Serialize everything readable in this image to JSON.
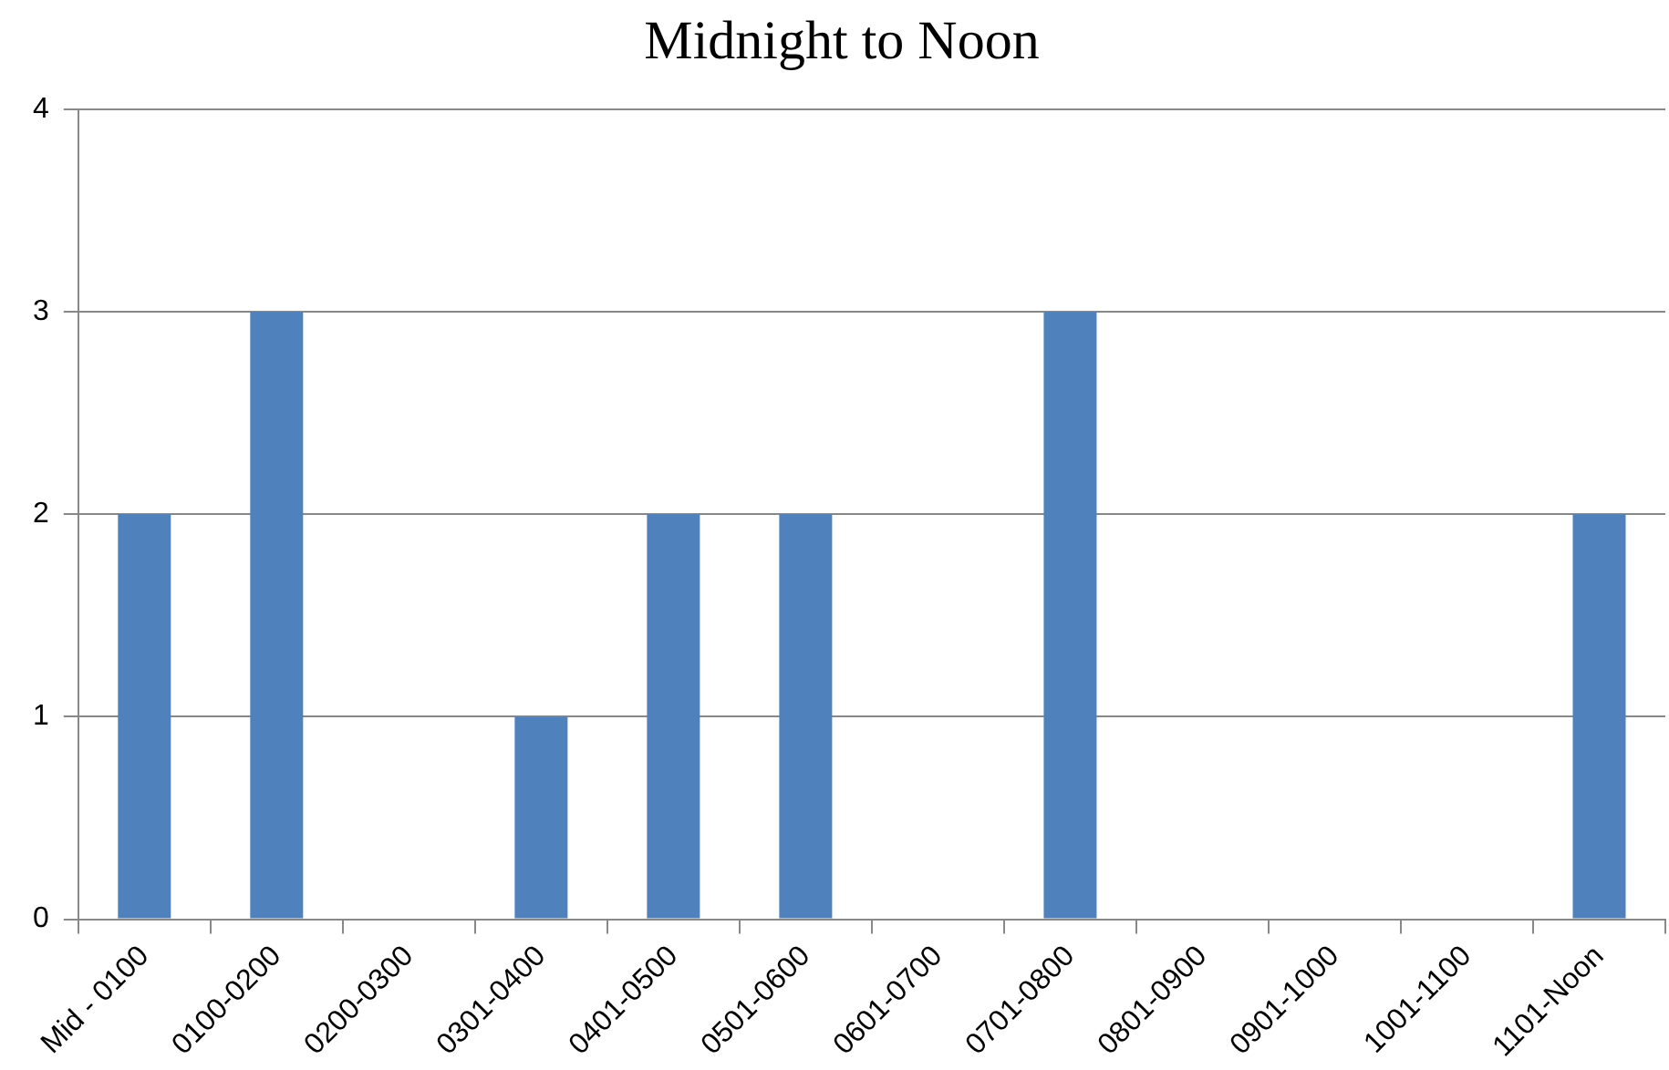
{
  "chart_data": {
    "type": "bar",
    "title": "Midnight to Noon",
    "categories": [
      "Mid - 0100",
      "0100-0200",
      "0200-0300",
      "0301-0400",
      "0401-0500",
      "0501-0600",
      "0601-0700",
      "0701-0800",
      "0801-0900",
      "0901-1000",
      "1001-1100",
      "1101-Noon"
    ],
    "values": [
      2,
      3,
      0,
      1,
      2,
      2,
      0,
      3,
      0,
      0,
      0,
      2
    ],
    "color": "#4f81bd",
    "ylim": [
      0,
      4
    ],
    "yticks": [
      0,
      1,
      2,
      3,
      4
    ],
    "grid": "y",
    "legend": false
  }
}
